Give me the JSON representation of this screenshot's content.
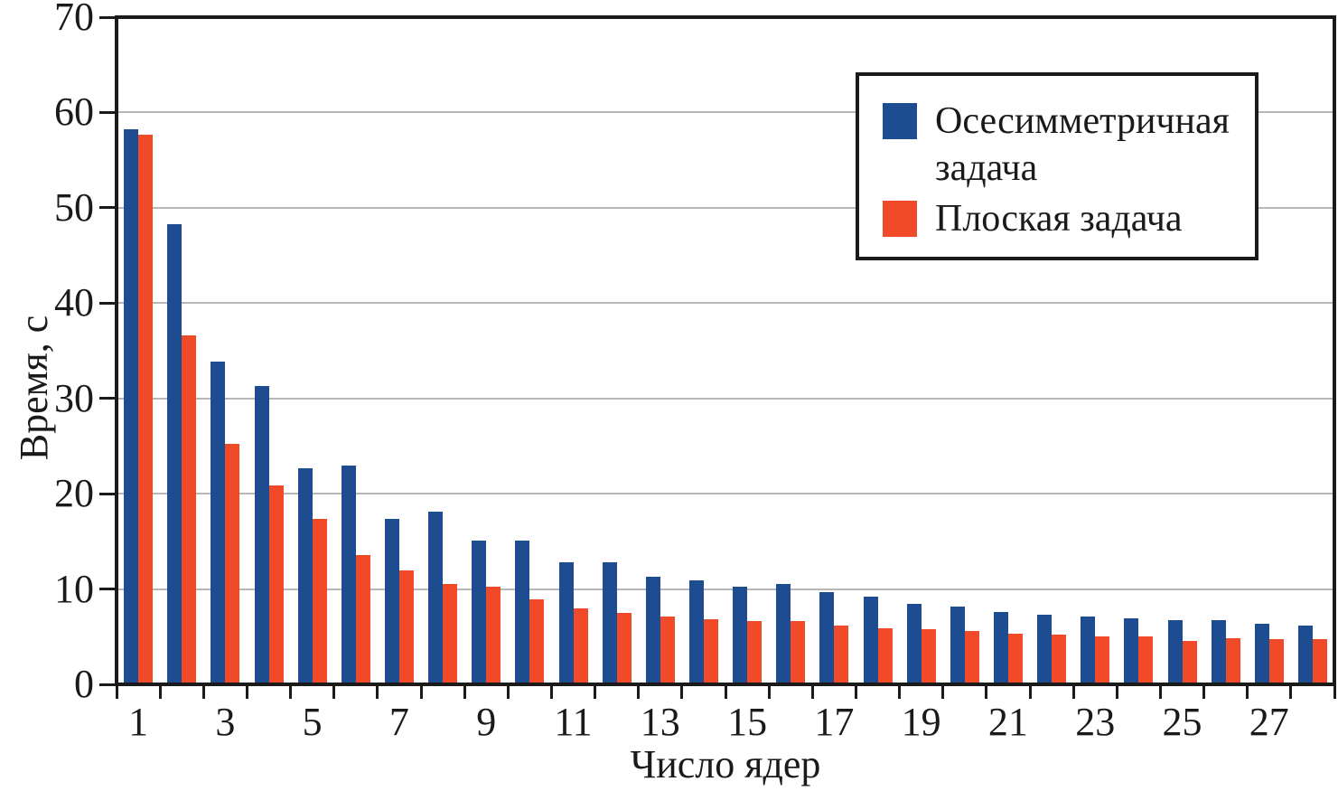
{
  "chart_data": {
    "type": "bar",
    "title": "",
    "xlabel": "Число ядер",
    "ylabel": "Время, с",
    "ylim": [
      0,
      70
    ],
    "y_ticks": [
      0,
      10,
      20,
      30,
      40,
      50,
      60,
      70
    ],
    "categories": [
      1,
      2,
      3,
      4,
      5,
      6,
      7,
      8,
      9,
      10,
      11,
      12,
      13,
      14,
      15,
      16,
      17,
      18,
      19,
      20,
      21,
      22,
      23,
      24,
      25,
      26,
      27,
      28
    ],
    "x_labeled_categories": [
      1,
      3,
      5,
      7,
      9,
      11,
      13,
      15,
      17,
      19,
      21,
      23,
      25,
      27
    ],
    "grid": "horizontal",
    "legend_position": "top-right-inside",
    "axis_color": "#1a1a1a",
    "grid_color": "#b7b7b7",
    "background_color": "#ffffff",
    "series": [
      {
        "name": "Осесимметричная задача",
        "color": "#1E4C90",
        "values": [
          58.2,
          48.3,
          33.9,
          31.3,
          22.7,
          23.0,
          17.4,
          18.1,
          15.1,
          15.1,
          12.8,
          12.8,
          11.3,
          10.9,
          10.2,
          10.5,
          9.7,
          9.2,
          8.4,
          8.2,
          7.6,
          7.3,
          7.1,
          6.9,
          6.7,
          6.7,
          6.4,
          6.2
        ]
      },
      {
        "name": "Плоская задача",
        "color": "#F04A28",
        "values": [
          57.7,
          36.6,
          25.2,
          20.9,
          17.4,
          13.6,
          12.0,
          10.5,
          10.2,
          8.9,
          8.0,
          7.5,
          7.1,
          6.8,
          6.6,
          6.6,
          6.2,
          5.9,
          5.8,
          5.6,
          5.3,
          5.2,
          5.0,
          5.0,
          4.6,
          4.8,
          4.7,
          4.7
        ]
      }
    ]
  }
}
